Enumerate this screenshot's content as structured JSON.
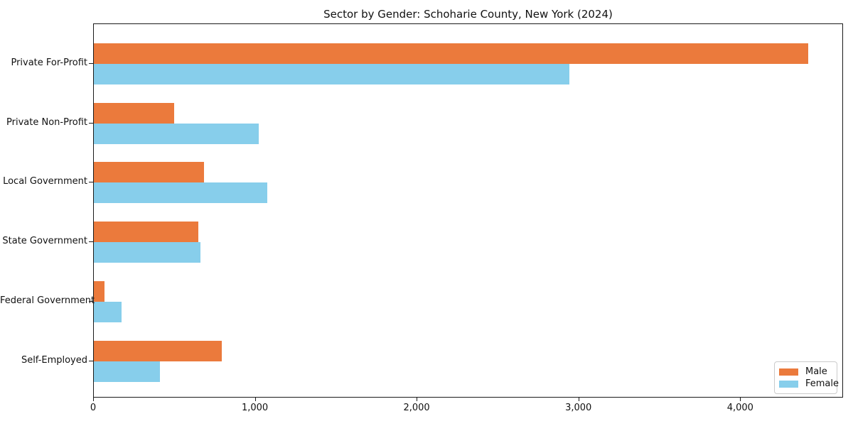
{
  "chart_data": {
    "type": "bar",
    "orientation": "horizontal",
    "title": "Sector by Gender: Schoharie County, New York (2024)",
    "categories": [
      "Private For-Profit",
      "Private Non-Profit",
      "Local Government",
      "State Government",
      "Federal Government",
      "Self-Employed"
    ],
    "series": [
      {
        "name": "Male",
        "color": "#EB7A3C",
        "values": [
          4415,
          495,
          680,
          645,
          67,
          790
        ]
      },
      {
        "name": "Female",
        "color": "#87CEEB",
        "values": [
          2940,
          1018,
          1070,
          660,
          171,
          407
        ]
      }
    ],
    "xlabel": "",
    "ylabel": "",
    "xlim": [
      0,
      4636
    ],
    "xticks": [
      {
        "value": 0,
        "label": "0"
      },
      {
        "value": 1000,
        "label": "1,000"
      },
      {
        "value": 2000,
        "label": "2,000"
      },
      {
        "value": 3000,
        "label": "3,000"
      },
      {
        "value": 4000,
        "label": "4,000"
      }
    ],
    "grid": false,
    "legend": {
      "position": "lower right",
      "entries": [
        "Male",
        "Female"
      ]
    }
  }
}
